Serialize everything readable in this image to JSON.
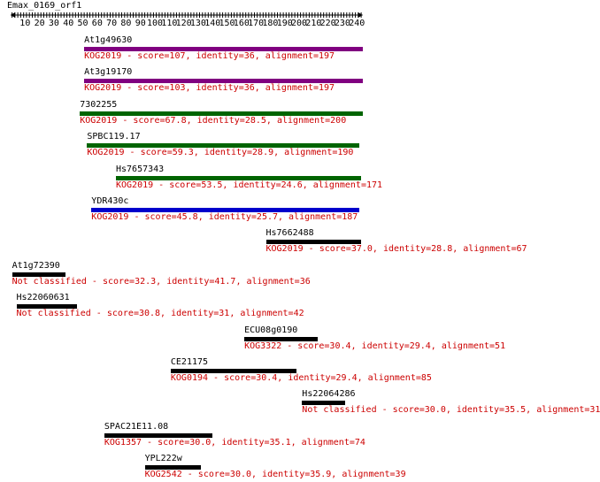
{
  "query": {
    "name": "Emax_0169_orf1",
    "ticks": [
      10,
      20,
      30,
      40,
      50,
      60,
      70,
      80,
      90,
      100,
      110,
      120,
      130,
      140,
      150,
      160,
      170,
      180,
      190,
      200,
      210,
      220,
      230,
      240
    ]
  },
  "colors": {
    "purple": "#800080",
    "green": "#006400",
    "blue": "#0000cc",
    "black": "#000000",
    "desc": "#cc0000"
  },
  "hits": [
    {
      "name": "At1g49630",
      "start": 51,
      "end": 244,
      "color": "purple",
      "desc": "KOG2019 - score=107, identity=36, alignment=197"
    },
    {
      "name": "At3g19170",
      "start": 51,
      "end": 244,
      "color": "purple",
      "desc": "KOG2019 - score=103, identity=36, alignment=197"
    },
    {
      "name": "7302255",
      "start": 48,
      "end": 244,
      "color": "green",
      "desc": "KOG2019 - score=67.8, identity=28.5, alignment=200"
    },
    {
      "name": "SPBC119.17",
      "start": 53,
      "end": 242,
      "color": "green",
      "desc": "KOG2019 - score=59.3, identity=28.9, alignment=190"
    },
    {
      "name": "Hs7657343",
      "start": 73,
      "end": 243,
      "color": "green",
      "desc": "KOG2019 - score=53.5, identity=24.6, alignment=171"
    },
    {
      "name": "YDR430c",
      "start": 56,
      "end": 242,
      "color": "blue",
      "desc": "KOG2019 - score=45.8, identity=25.7, alignment=187"
    },
    {
      "name": "Hs7662488",
      "start": 177,
      "end": 243,
      "color": "black",
      "desc": "KOG2019 - score=37.0, identity=28.8, alignment=67"
    },
    {
      "name": "At1g72390",
      "start": 1,
      "end": 38,
      "color": "black",
      "desc": "Not classified - score=32.3, identity=41.7, alignment=36"
    },
    {
      "name": "Hs22060631",
      "start": 4,
      "end": 46,
      "color": "black",
      "desc": "Not classified - score=30.8, identity=31, alignment=42"
    },
    {
      "name": "ECU08g0190",
      "start": 162,
      "end": 213,
      "color": "black",
      "desc": "KOG3322 - score=30.4, identity=29.4, alignment=51"
    },
    {
      "name": "CE21175",
      "start": 111,
      "end": 198,
      "color": "black",
      "desc": "KOG0194 - score=30.4, identity=29.4, alignment=85"
    },
    {
      "name": "Hs22064286",
      "start": 202,
      "end": 232,
      "color": "black",
      "desc": "Not classified - score=30.0, identity=35.5, alignment=31"
    },
    {
      "name": "SPAC21E11.08",
      "start": 65,
      "end": 140,
      "color": "black",
      "desc": "KOG1357 - score=30.0, identity=35.1, alignment=74"
    },
    {
      "name": "YPL222w",
      "start": 93,
      "end": 132,
      "color": "black",
      "desc": "KOG2542 - score=30.0, identity=35.9, alignment=39"
    }
  ]
}
